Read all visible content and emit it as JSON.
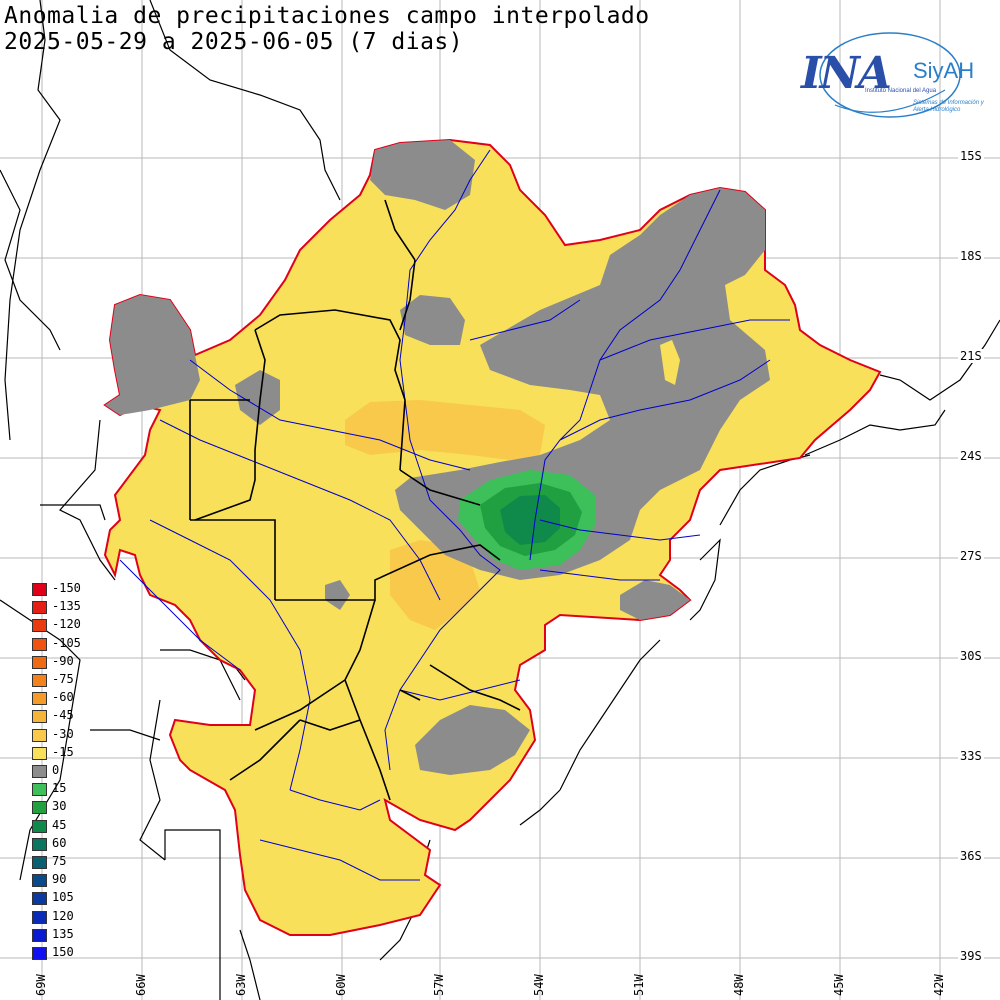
{
  "map": {
    "title_line1": "Anomalia de precipitaciones campo interpolado",
    "title_line2": "2025-05-29 a 2025-06-05 (7 dias)"
  },
  "logo": {
    "name": "INA",
    "product": "SiyAH",
    "subtitle": "Instituto Nacional del Agua",
    "tagline": "Sistemas de Información y Alerta Hidrológico"
  },
  "latitude_labels": [
    "15S",
    "18S",
    "21S",
    "24S",
    "27S",
    "30S",
    "33S",
    "36S",
    "39S"
  ],
  "longitude_labels": [
    "69W",
    "66W",
    "63W",
    "60W",
    "57W",
    "54W",
    "51W",
    "48W",
    "45W",
    "42W"
  ],
  "legend": {
    "entries": [
      {
        "label": "-150",
        "color": "#e0001a"
      },
      {
        "label": "-135",
        "color": "#e51f12"
      },
      {
        "label": "-120",
        "color": "#ea3a10"
      },
      {
        "label": "-105",
        "color": "#ef5310"
      },
      {
        "label": "-90",
        "color": "#f06a14"
      },
      {
        "label": "-75",
        "color": "#f3821c"
      },
      {
        "label": "-60",
        "color": "#f59b2a"
      },
      {
        "label": "-45",
        "color": "#f7b43a"
      },
      {
        "label": "-30",
        "color": "#f8c94a"
      },
      {
        "label": "-15",
        "color": "#f8e05a"
      },
      {
        "label": "0",
        "color": "#8c8c8c"
      },
      {
        "label": "15",
        "color": "#3dbf5a"
      },
      {
        "label": "30",
        "color": "#20a040"
      },
      {
        "label": "45",
        "color": "#0f8a4a"
      },
      {
        "label": "60",
        "color": "#0b7560"
      },
      {
        "label": "75",
        "color": "#0a6070"
      },
      {
        "label": "90",
        "color": "#0a4a8a"
      },
      {
        "label": "105",
        "color": "#0a3aa0"
      },
      {
        "label": "120",
        "color": "#0a2ab8"
      },
      {
        "label": "135",
        "color": "#0a1ad0"
      },
      {
        "label": "150",
        "color": "#1010f0"
      }
    ]
  },
  "colors": {
    "dry_fill": "#f8e05a",
    "drier_fill": "#f8c94a",
    "neutral_fill": "#8c8c8c",
    "basin_border": "#e0001a",
    "rivers": "#0000cc",
    "borders": "#000000",
    "grid": "#b8b8b8"
  }
}
